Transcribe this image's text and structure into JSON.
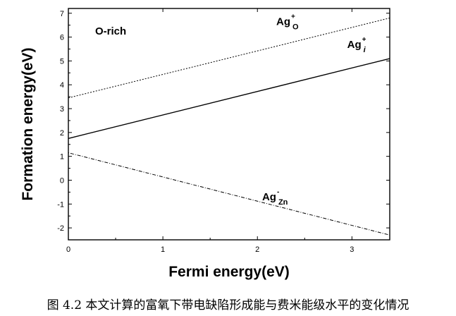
{
  "chart_data": {
    "type": "line",
    "xlabel": "Fermi energy(eV)",
    "ylabel": "Formation energy(eV)",
    "xlim": [
      0,
      3.4
    ],
    "ylim": [
      -2.5,
      7.2
    ],
    "x_ticks": [
      0,
      1,
      2,
      3
    ],
    "y_ticks": [
      -2,
      -1,
      0,
      1,
      2,
      3,
      4,
      5,
      6,
      7
    ],
    "grid": false,
    "condition_label": "O-rich",
    "series": [
      {
        "name": "Ag_O",
        "style": "dotted",
        "x": [
          0,
          3.4
        ],
        "y": [
          3.45,
          6.8
        ],
        "label": {
          "base": "Ag",
          "sup": "+",
          "sub": "O",
          "at": [
            2.2,
            6.5
          ]
        }
      },
      {
        "name": "Ag_i",
        "style": "solid",
        "x": [
          0,
          3.4
        ],
        "y": [
          1.75,
          5.1
        ],
        "label": {
          "base": "Ag",
          "sup": "+",
          "sub": "i",
          "at": [
            2.95,
            5.55
          ]
        }
      },
      {
        "name": "Ag_Zn",
        "style": "dashdot",
        "x": [
          0,
          3.4
        ],
        "y": [
          1.15,
          -2.3
        ],
        "label": {
          "base": "Ag",
          "sup": "-",
          "sub": "Zn",
          "at": [
            2.05,
            -0.85
          ]
        }
      }
    ]
  },
  "caption": "图 4.2 本文计算的富氧下带电缺陷形成能与费米能级水平的变化情况"
}
